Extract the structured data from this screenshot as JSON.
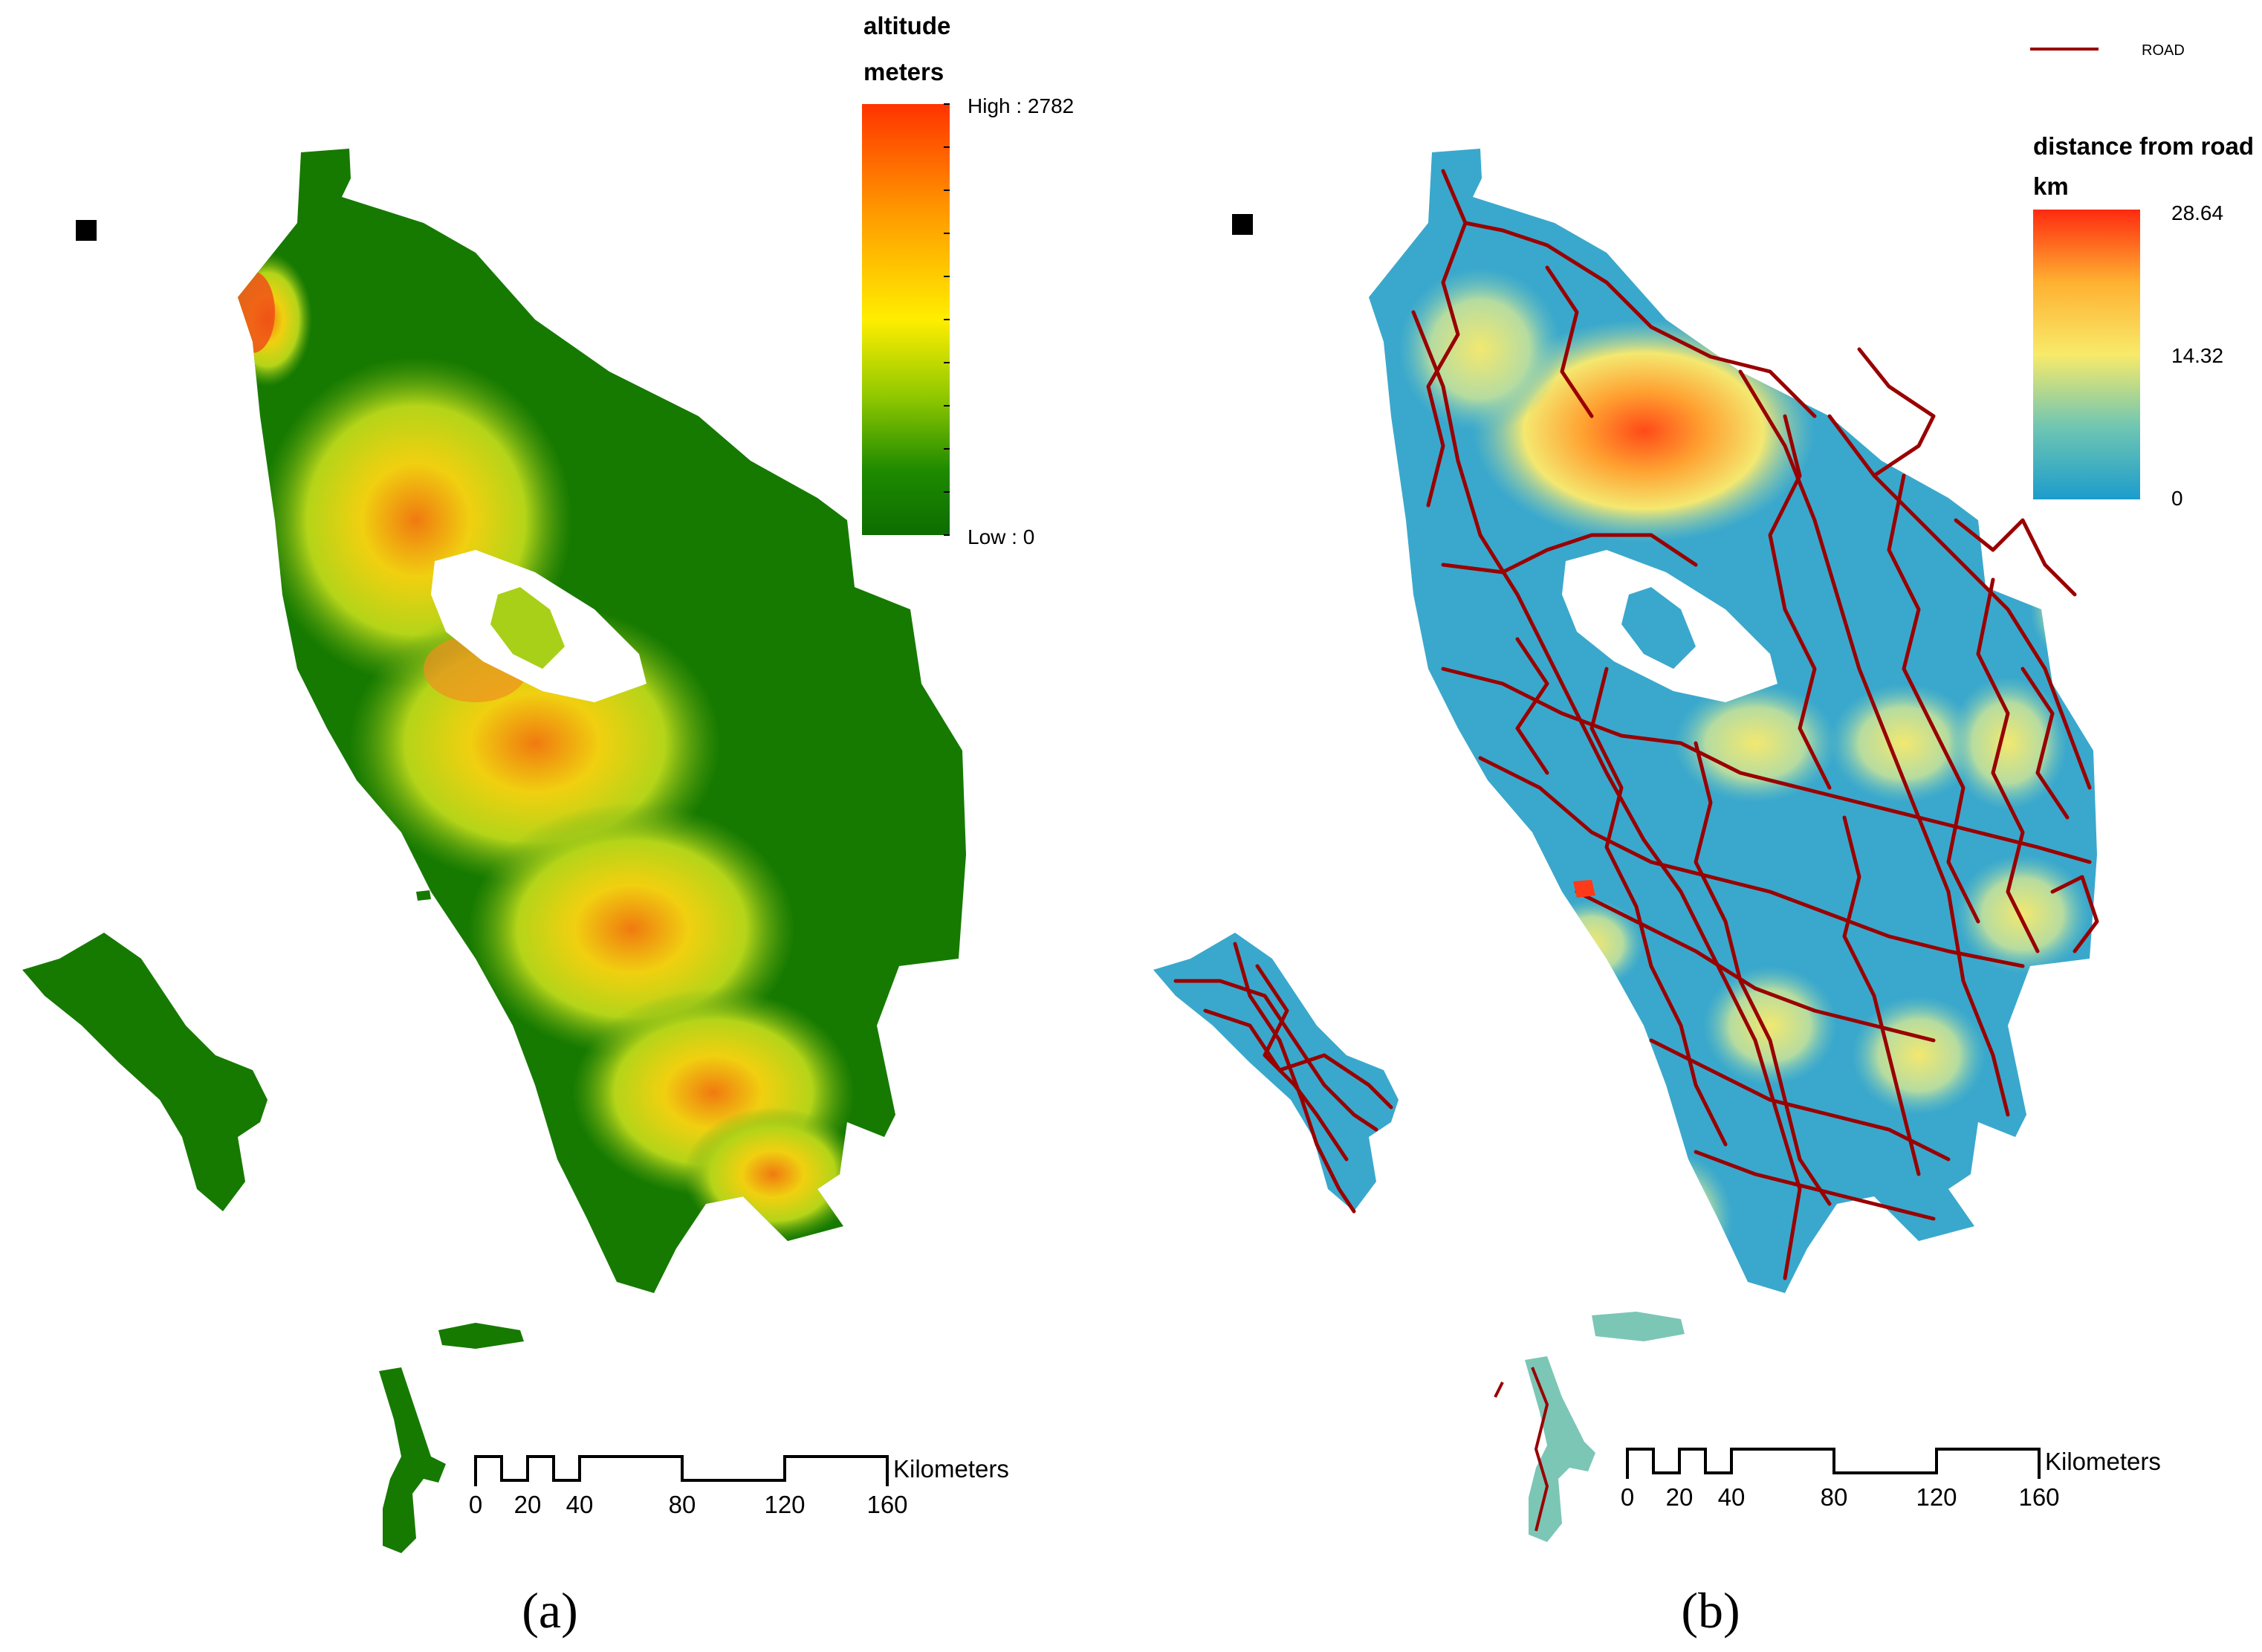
{
  "panel_a": {
    "caption": "(a)",
    "legend": {
      "title_line1": "altitude",
      "title_line2": "meters",
      "high_label": "High : 2782",
      "low_label": "Low : 0",
      "colors": [
        "#ff3300",
        "#ff9900",
        "#ffee00",
        "#8fc800",
        "#1e8a00",
        "#0d6d00"
      ]
    },
    "scale_bar": {
      "unit": "Kilometers",
      "ticks": [
        "0",
        "20",
        "40",
        "80",
        "120",
        "160"
      ]
    }
  },
  "panel_b": {
    "caption": "(b)",
    "road_legend_label": "ROAD",
    "road_color": "#990000",
    "legend": {
      "title_line1": "distance from road",
      "title_line2": "km",
      "max_label": "28.64",
      "mid_label": "14.32",
      "min_label": "0",
      "colors": [
        "#ff2a10",
        "#ffb030",
        "#f8ea6a",
        "#6fc6b2",
        "#1c9ccc"
      ]
    },
    "scale_bar": {
      "unit": "Kilometers",
      "ticks": [
        "0",
        "20",
        "40",
        "80",
        "120",
        "160"
      ]
    }
  }
}
